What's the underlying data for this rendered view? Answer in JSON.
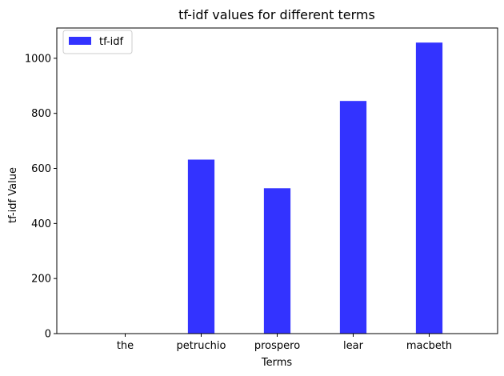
{
  "chart_data": {
    "type": "bar",
    "title": "tf-idf values for different terms",
    "xlabel": "Terms",
    "ylabel": "tf-idf Value",
    "categories": [
      "the",
      "petruchio",
      "prospero",
      "lear",
      "macbeth"
    ],
    "series": [
      {
        "name": "tf-idf",
        "values": [
          0,
          632,
          528,
          845,
          1057
        ],
        "color": "#3333ff"
      }
    ],
    "ylim": [
      0,
      1110
    ],
    "yticks": [
      0,
      200,
      400,
      600,
      800,
      1000
    ],
    "grid": false,
    "legend": "upper-left"
  }
}
